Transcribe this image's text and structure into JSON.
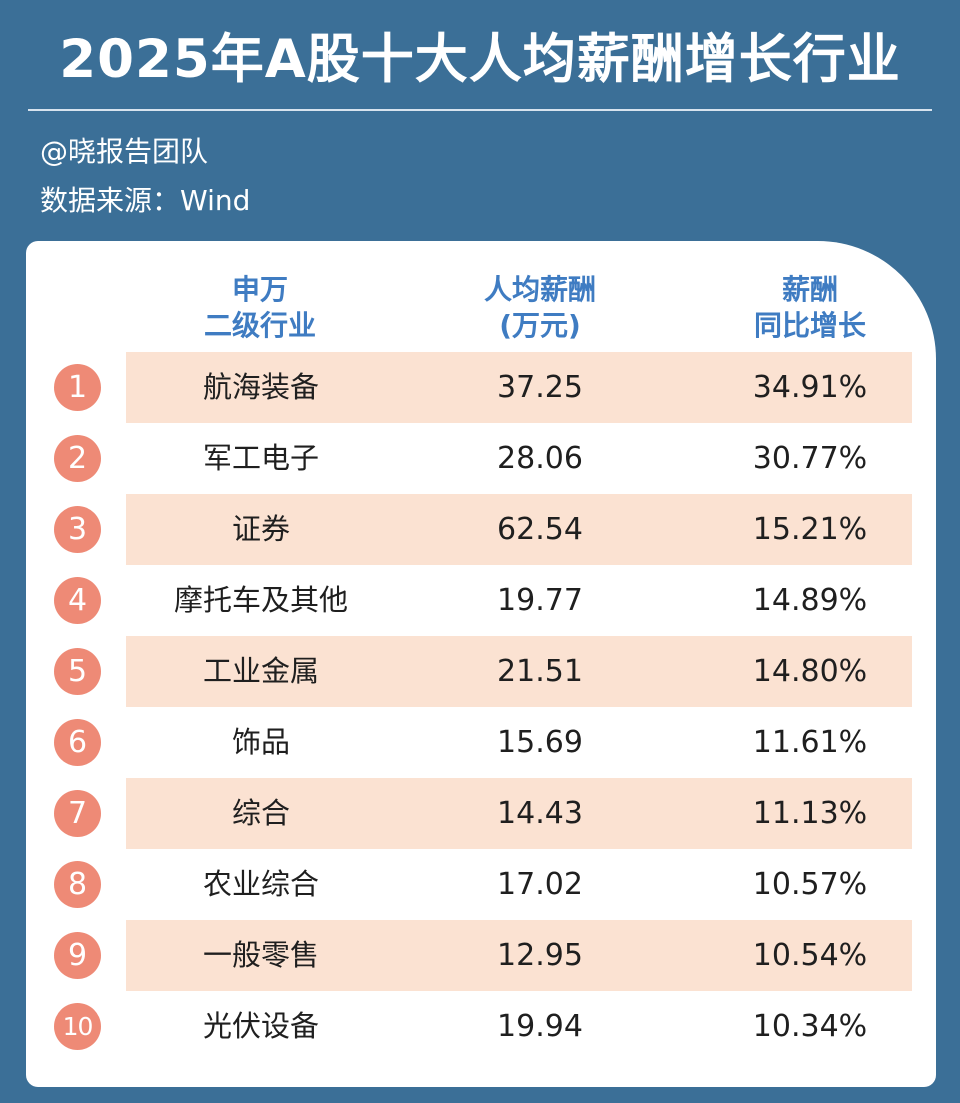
{
  "title": "2025年A股十大人均薪酬增长行业",
  "author": "@晓报告团队",
  "source": "数据来源：Wind",
  "colors": {
    "background": "#3b6f97",
    "header_text": "#3f7cc2",
    "row_band": "#fbe2d2",
    "badge": "#ee8a76"
  },
  "chart_data": {
    "type": "table",
    "columns": [
      {
        "line1": "申万",
        "line2": "二级行业"
      },
      {
        "line1": "人均薪酬",
        "line2": "(万元)"
      },
      {
        "line1": "薪酬",
        "line2": "同比增长"
      }
    ],
    "rows": [
      {
        "rank": "1",
        "industry": "航海装备",
        "salary": "37.25",
        "growth": "34.91%"
      },
      {
        "rank": "2",
        "industry": "军工电子",
        "salary": "28.06",
        "growth": "30.77%"
      },
      {
        "rank": "3",
        "industry": "证券",
        "salary": "62.54",
        "growth": "15.21%"
      },
      {
        "rank": "4",
        "industry": "摩托车及其他",
        "salary": "19.77",
        "growth": "14.89%"
      },
      {
        "rank": "5",
        "industry": "工业金属",
        "salary": "21.51",
        "growth": "14.80%"
      },
      {
        "rank": "6",
        "industry": "饰品",
        "salary": "15.69",
        "growth": "11.61%"
      },
      {
        "rank": "7",
        "industry": "综合",
        "salary": "14.43",
        "growth": "11.13%"
      },
      {
        "rank": "8",
        "industry": "农业综合",
        "salary": "17.02",
        "growth": "10.57%"
      },
      {
        "rank": "9",
        "industry": "一般零售",
        "salary": "12.95",
        "growth": "10.54%"
      },
      {
        "rank": "10",
        "industry": "光伏设备",
        "salary": "19.94",
        "growth": "10.34%"
      }
    ]
  }
}
